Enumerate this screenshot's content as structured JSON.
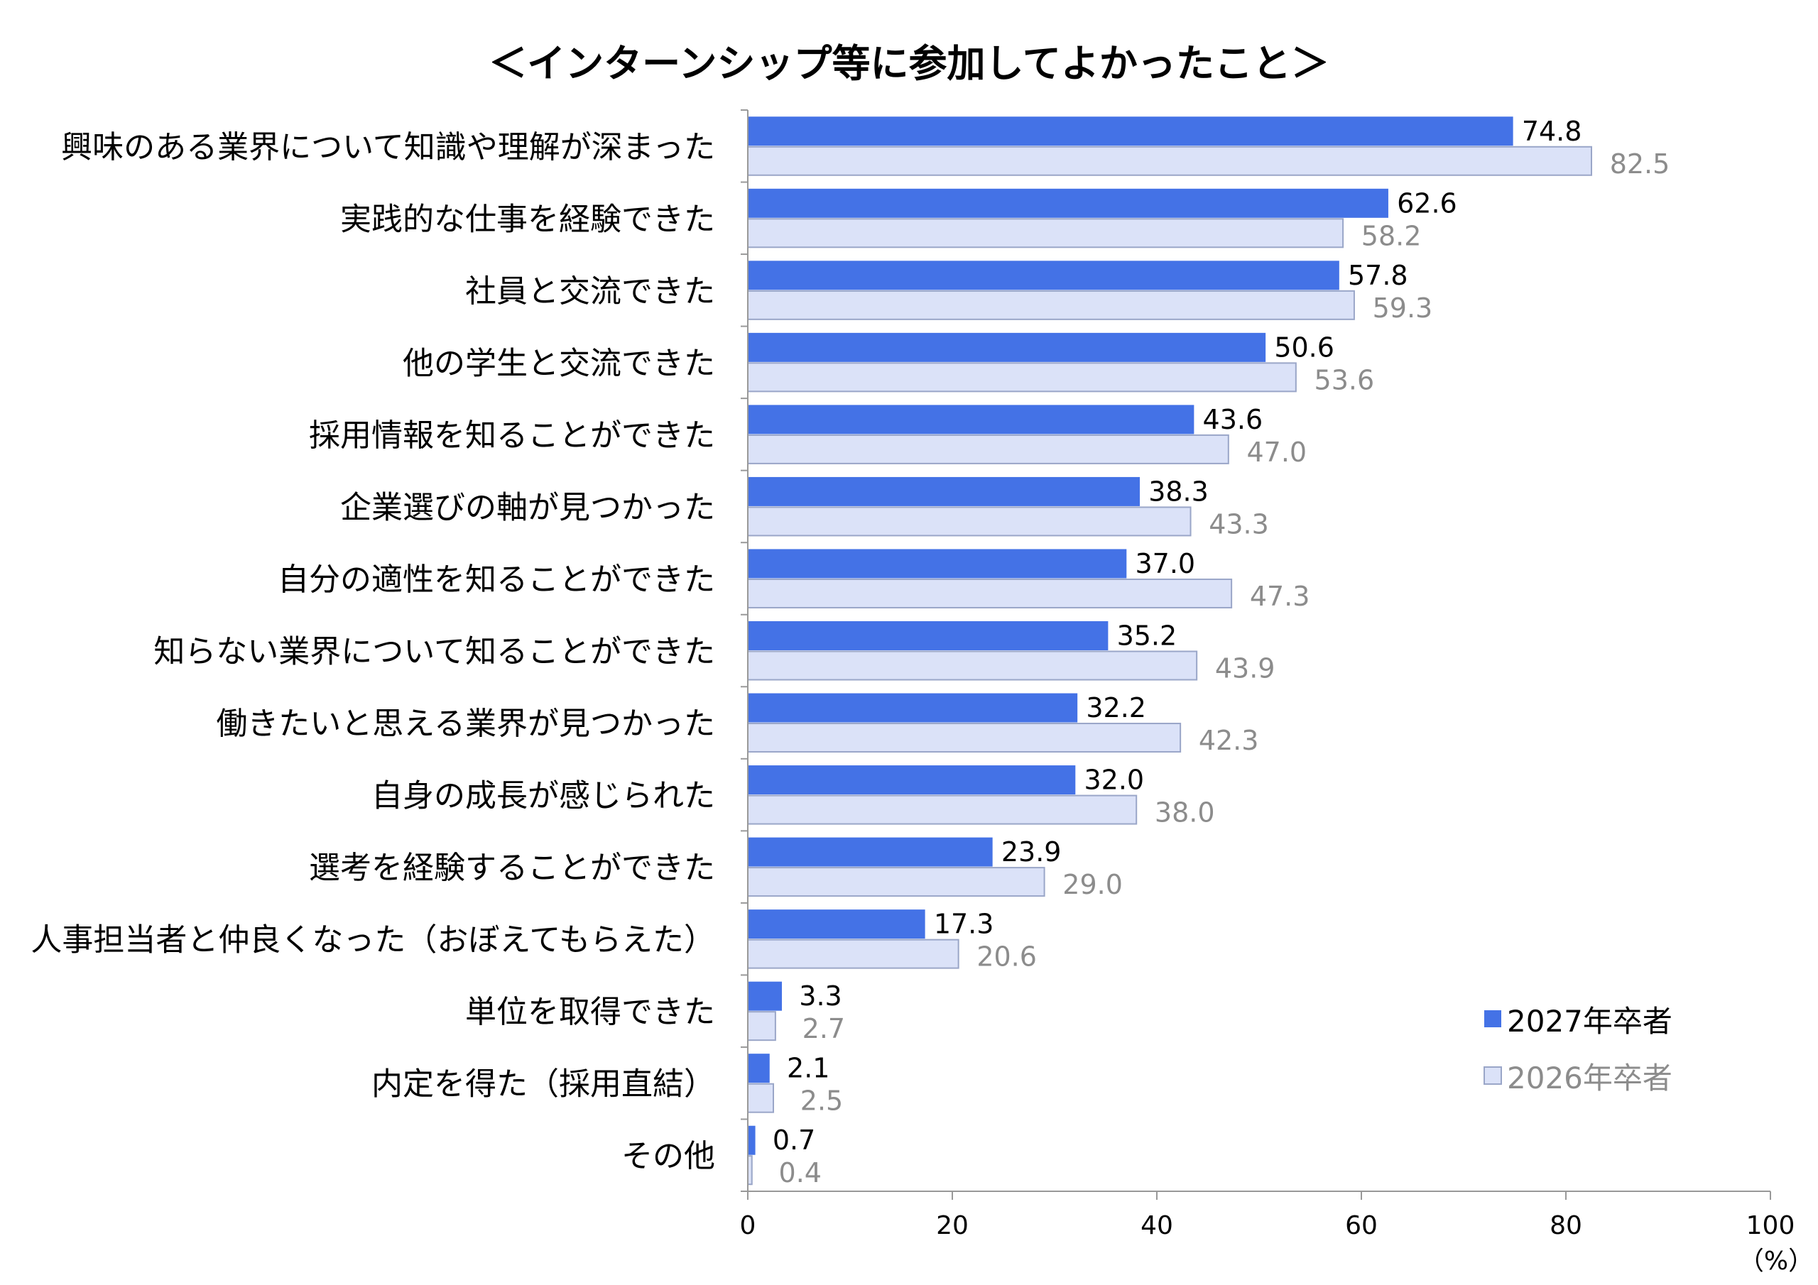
{
  "chart_data": {
    "type": "bar",
    "orientation": "horizontal",
    "title": "＜インターンシップ等に参加してよかったこと＞",
    "categories": [
      "興味のある業界について知識や理解が深まった",
      "実践的な仕事を経験できた",
      "社員と交流できた",
      "他の学生と交流できた",
      "採用情報を知ることができた",
      "企業選びの軸が見つかった",
      "自分の適性を知ることができた",
      "知らない業界について知ることができた",
      "働きたいと思える業界が見つかった",
      "自身の成長が感じられた",
      "選考を経験することができた",
      "人事担当者と仲良くなった（おぼえてもらえた）",
      "単位を取得できた",
      "内定を得た（採用直結）",
      "その他"
    ],
    "series": [
      {
        "name": "2027年卒者",
        "color": "#4472e6",
        "values": [
          74.8,
          62.6,
          57.8,
          50.6,
          43.6,
          38.3,
          37.0,
          35.2,
          32.2,
          32.0,
          23.9,
          17.3,
          3.3,
          2.1,
          0.7
        ],
        "labels": [
          "74.8",
          "62.6",
          "57.8",
          "50.6",
          "43.6",
          "38.3",
          "37.0",
          "35.2",
          "32.2",
          "32.0",
          "23.9",
          "17.3",
          "3.3",
          "2.1",
          "0.7"
        ]
      },
      {
        "name": "2026年卒者",
        "color": "#dbe2f8",
        "values": [
          82.5,
          58.2,
          59.3,
          53.6,
          47.0,
          43.3,
          47.3,
          43.9,
          42.3,
          38.0,
          29.0,
          20.6,
          2.7,
          2.5,
          0.4
        ],
        "labels": [
          "82.5",
          "58.2",
          "59.3",
          "53.6",
          "47.0",
          "43.3",
          "47.3",
          "43.9",
          "42.3",
          "38.0",
          "29.0",
          "20.6",
          "2.7",
          "2.5",
          "0.4"
        ]
      }
    ],
    "xlim": [
      0,
      100
    ],
    "xticks": [
      "0",
      "20",
      "40",
      "60",
      "80",
      "100"
    ],
    "xunit": "（%）",
    "legend_position": "bottom-right"
  }
}
